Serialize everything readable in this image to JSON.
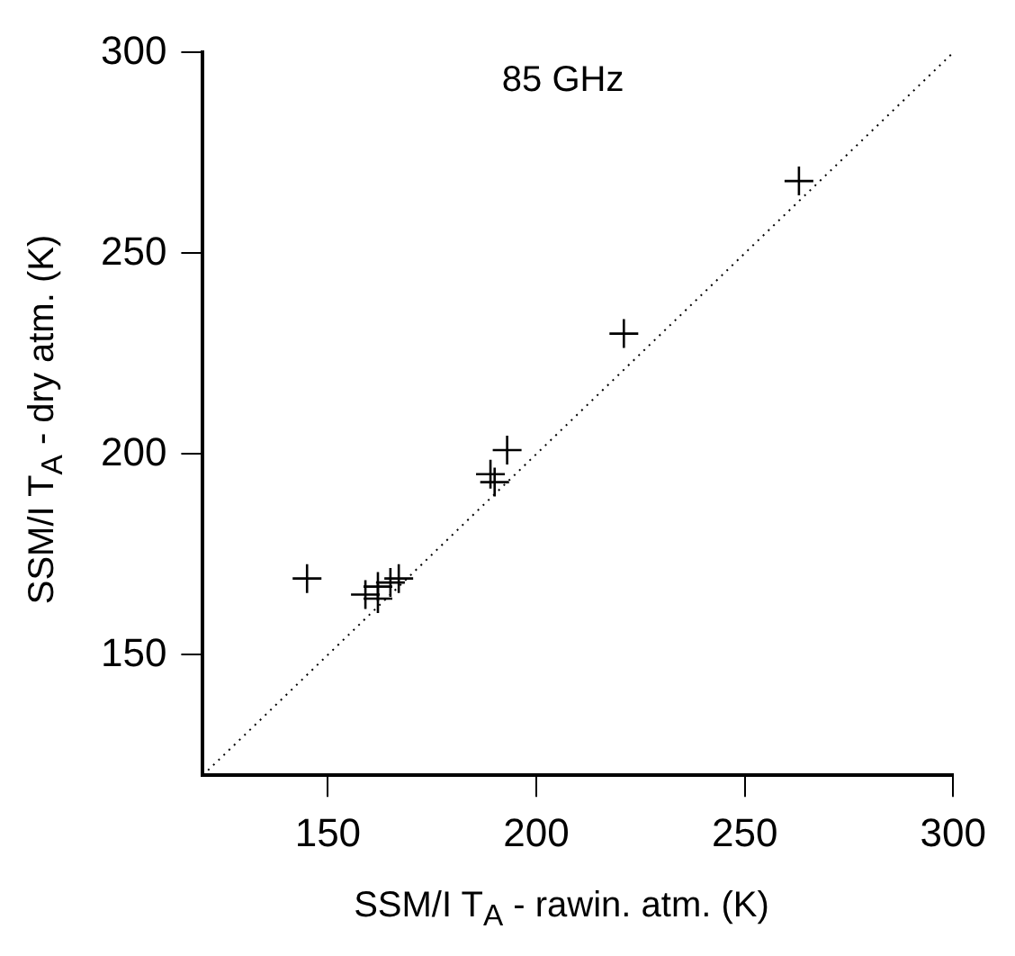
{
  "chart_data": {
    "type": "scatter",
    "title": "85 GHz",
    "xlabel": "SSM/I T$_{A}$ - rawin. atm. (K)",
    "ylabel": "SSM/I T$_{A}$ - dry atm. (K)",
    "xlim": [
      120,
      300
    ],
    "ylim": [
      120,
      300
    ],
    "xticks": [
      150,
      200,
      250,
      300
    ],
    "yticks": [
      150,
      200,
      250,
      300
    ],
    "grid": false,
    "legend": false,
    "marker": "cross",
    "series": [
      {
        "color": "#000000",
        "x": [
          263,
          221,
          193,
          189,
          190,
          145,
          159,
          162,
          165,
          167,
          162
        ],
        "values": [
          268,
          230,
          201,
          195,
          193,
          169,
          165,
          164,
          168,
          169,
          167
        ]
      },
      {
        "type": "line",
        "color": "#000000",
        "line_style": "dotted",
        "marker": "none",
        "x": [
          120,
          300
        ],
        "values": [
          120,
          300
        ]
      }
    ]
  }
}
